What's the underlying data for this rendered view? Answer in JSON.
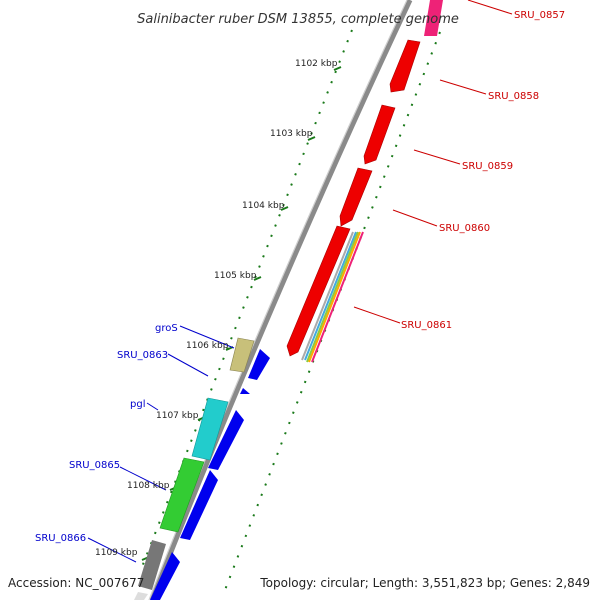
{
  "title": "Salinibacter ruber DSM 13855, complete genome",
  "footer": {
    "accession": "Accession: NC_007677",
    "summary": "Topology: circular; Length: 3,551,823 bp; Genes: 2,849"
  },
  "colors": {
    "forward_strand": "#ff0000",
    "reverse_strand": "#0000ff",
    "backbone": "#888888",
    "tick": "#1a7a1a",
    "forward_label": "#cc0000",
    "reverse_label": "#0000cc"
  },
  "kbp_ticks": [
    "1102 kbp",
    "1103 kbp",
    "1104 kbp",
    "1105 kbp",
    "1106 kbp",
    "1107 kbp",
    "1108 kbp",
    "1109 kbp"
  ],
  "forward_genes": [
    "SRU_0857",
    "SRU_0858",
    "SRU_0859",
    "SRU_0860",
    "SRU_0861"
  ],
  "reverse_genes": [
    "groS",
    "SRU_0863",
    "pgl",
    "SRU_0865",
    "SRU_0866"
  ]
}
